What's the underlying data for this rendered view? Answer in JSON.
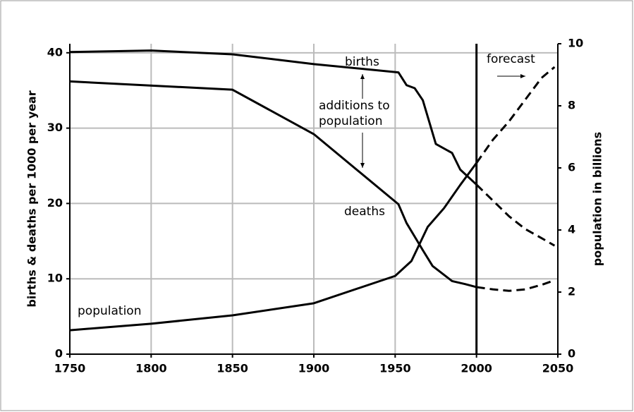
{
  "chart_data": {
    "type": "line",
    "y_label": "births & deaths per 1000 per year",
    "y2_label": "population in billions",
    "annotations": [
      "births",
      "additions to",
      "population",
      "deaths",
      "population",
      "forecast"
    ],
    "xlim": [
      1750,
      2050
    ],
    "xticks": [
      1750,
      1800,
      1850,
      1900,
      1950,
      2000,
      2050
    ],
    "ylim": [
      0,
      41.2
    ],
    "yticks": [
      0,
      10,
      20,
      30,
      40
    ],
    "y2lim": [
      0,
      10
    ],
    "y2ticks": [
      0,
      2,
      4,
      6,
      8,
      10
    ],
    "grid": true,
    "forecast_line": 2000,
    "series": [
      {
        "color": "#000000",
        "dashed": false,
        "axis": "y",
        "x": [
          1750,
          1800,
          1850,
          1900,
          1952,
          1957,
          1962,
          1967,
          1975,
          1985,
          1990,
          2000
        ],
        "values": [
          40.1,
          40.3,
          39.8,
          38.5,
          37.4,
          35.7,
          35.3,
          33.7,
          27.9,
          26.7,
          24.5,
          22.5
        ]
      },
      {
        "color": "#000000",
        "dashed": true,
        "axis": "y",
        "x": [
          2000,
          2010,
          2020,
          2030,
          2040,
          2048
        ],
        "values": [
          22.5,
          20.4,
          18.3,
          16.6,
          15.4,
          14.4
        ]
      },
      {
        "color": "#000000",
        "dashed": false,
        "axis": "y",
        "x": [
          1750,
          1850,
          1900,
          1952,
          1957,
          1962,
          1967,
          1973,
          1985,
          1993,
          2000
        ],
        "values": [
          36.2,
          35.1,
          29.2,
          19.9,
          17.4,
          15.6,
          13.8,
          11.7,
          9.7,
          9.3,
          8.9
        ]
      },
      {
        "color": "#000000",
        "dashed": true,
        "axis": "y",
        "x": [
          2000,
          2010,
          2020,
          2030,
          2040,
          2048
        ],
        "values": [
          8.9,
          8.6,
          8.4,
          8.6,
          9.2,
          9.8
        ]
      },
      {
        "color": "#000000",
        "dashed": false,
        "axis": "y2",
        "x": [
          1750,
          1800,
          1850,
          1900,
          1950,
          1960,
          1970,
          1980,
          1990,
          2000
        ],
        "values": [
          0.77,
          0.98,
          1.25,
          1.64,
          2.52,
          3.0,
          4.1,
          4.7,
          5.45,
          6.16
        ]
      },
      {
        "color": "#000000",
        "dashed": true,
        "axis": "y2",
        "x": [
          2000,
          2010,
          2020,
          2030,
          2040,
          2048
        ],
        "values": [
          6.16,
          6.9,
          7.5,
          8.2,
          8.9,
          9.25
        ]
      }
    ]
  }
}
